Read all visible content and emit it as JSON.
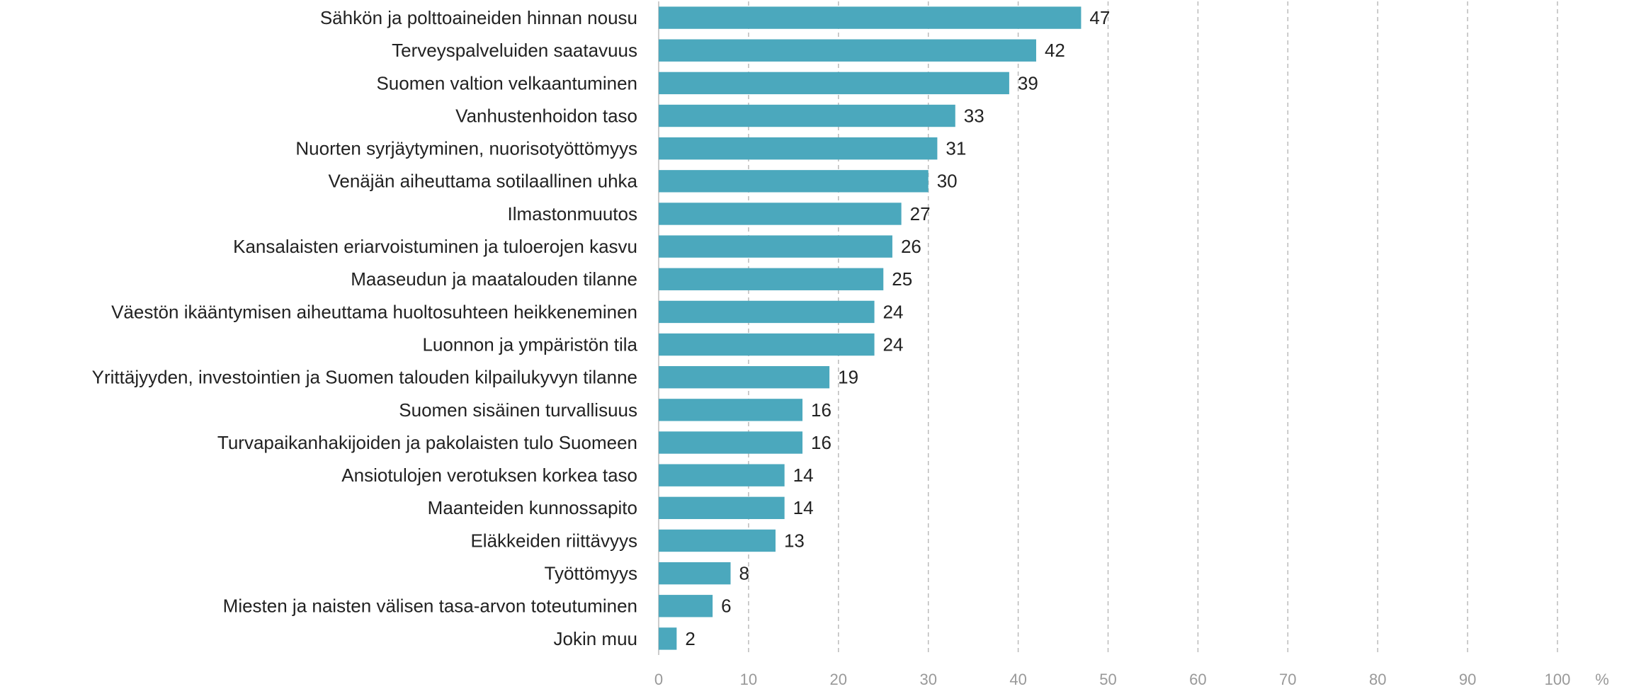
{
  "chart_data": {
    "type": "barh",
    "categories": [
      "Sähkön ja polttoaineiden hinnan nousu",
      "Terveyspalveluiden saatavuus",
      "Suomen valtion velkaantuminen",
      "Vanhustenhoidon taso",
      "Nuorten syrjäytyminen, nuorisotyöttömyys",
      "Venäjän aiheuttama sotilaallinen uhka",
      "Ilmastonmuutos",
      "Kansalaisten eriarvoistuminen ja tuloerojen kasvu",
      "Maaseudun ja maatalouden tilanne",
      "Väestön ikääntymisen aiheuttama huoltosuhteen heikkeneminen",
      "Luonnon ja ympäristön tila",
      "Yrittäjyyden, investointien ja Suomen talouden kilpailukyvyn tilanne",
      "Suomen sisäinen turvallisuus",
      "Turvapaikanhakijoiden ja pakolaisten tulo Suomeen",
      "Ansiotulojen verotuksen korkea taso",
      "Maanteiden kunnossapito",
      "Eläkkeiden riittävyys",
      "Työttömyys",
      "Miesten ja naisten välisen tasa-arvon toteutuminen",
      "Jokin muu"
    ],
    "values": [
      47,
      42,
      39,
      33,
      31,
      30,
      27,
      26,
      25,
      24,
      24,
      19,
      16,
      16,
      14,
      14,
      13,
      8,
      6,
      2
    ],
    "color": "#4ba8bd",
    "xlabel": "%",
    "xlim": [
      0,
      100
    ],
    "xticks": [
      0,
      10,
      20,
      30,
      40,
      50,
      60,
      70,
      80,
      90,
      100
    ],
    "grid": true
  }
}
